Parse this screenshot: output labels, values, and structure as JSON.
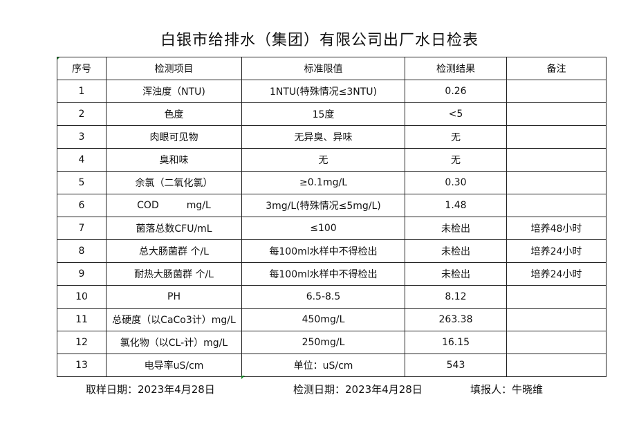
{
  "title": "白银市给排水（集团）有限公司出厂水日检表",
  "headers": [
    "序号",
    "检测项目",
    "标准限值",
    "检测结果",
    "备注"
  ],
  "rows": [
    [
      "1",
      "浑浊度（NTU)",
      "1NTU(特殊情况≤3NTU)",
      "0.26",
      ""
    ],
    [
      "2",
      "色度",
      "15度",
      "<5",
      ""
    ],
    [
      "3",
      "肉眼可见物",
      "无异臭、异味",
      "无",
      ""
    ],
    [
      "4",
      "臭和味",
      "无",
      "无",
      ""
    ],
    [
      "5",
      "余氯（二氧化氯）",
      "≥0.1mg/L",
      "0.30",
      ""
    ],
    [
      "6",
      "COD         mg/L",
      "3mg/L(特殊情况≤5mg/L)",
      "1.48",
      ""
    ],
    [
      "7",
      "菌落总数CFU/mL",
      "≤100",
      "未检出",
      "培养48小时"
    ],
    [
      "8",
      "总大肠菌群 个/L",
      "每100ml水样中不得检出",
      "未检出",
      "培养24小时"
    ],
    [
      "9",
      "耐热大肠菌群 个/L",
      "每100ml水样中不得检出",
      "未检出",
      "培养24小时"
    ],
    [
      "10",
      "PH",
      "6.5-8.5",
      "8.12",
      ""
    ],
    [
      "11",
      "总硬度（以CaCo3计）mg/L",
      "450mg/L",
      "263.38",
      ""
    ],
    [
      "12",
      "氯化物（以CL-计）mg/L",
      "250mg/L",
      "16.15",
      ""
    ],
    [
      "13",
      "电导率uS/cm",
      "单位：uS/cm",
      "543",
      ""
    ]
  ],
  "footer": {
    "sampling_date": "取样日期：2023年4月28日",
    "test_date": "检测日期：2023年4月28日",
    "reporter": "填报人：牛晓维"
  }
}
